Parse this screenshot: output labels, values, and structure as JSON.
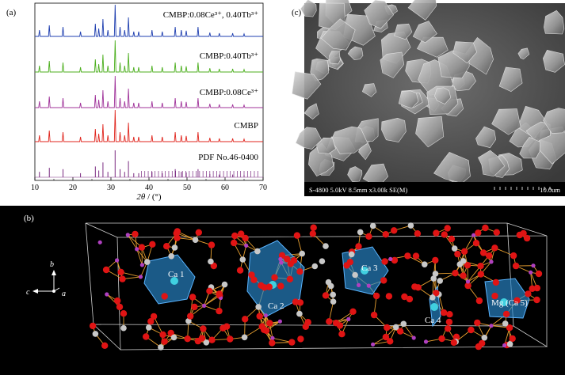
{
  "panel_a": {
    "label": "(a)",
    "xlabel_italic": "2θ",
    "xlabel_unit": " / (°)",
    "chart_data": {
      "type": "line",
      "xlim": [
        10,
        70
      ],
      "x_ticks": [
        10,
        20,
        30,
        40,
        50,
        60,
        70
      ],
      "series": [
        {
          "name": "CMBP:0.08Ce³⁺, 0.40Tb³⁺",
          "color": "#1f3fb0"
        },
        {
          "name": "CMBP:0.40Tb³⁺",
          "color": "#4caf1e"
        },
        {
          "name": "CMBP:0.08Ce³⁺",
          "color": "#a0339a"
        },
        {
          "name": "CMBP",
          "color": "#e0261e"
        },
        {
          "name": "PDF No.46-0400",
          "color": "#7a2a80"
        }
      ],
      "peaks": [
        {
          "x": 11.2,
          "h": 0.2
        },
        {
          "x": 13.8,
          "h": 0.35
        },
        {
          "x": 17.4,
          "h": 0.3
        },
        {
          "x": 22.0,
          "h": 0.15
        },
        {
          "x": 25.9,
          "h": 0.4
        },
        {
          "x": 26.8,
          "h": 0.25
        },
        {
          "x": 27.9,
          "h": 0.55
        },
        {
          "x": 29.2,
          "h": 0.2
        },
        {
          "x": 31.1,
          "h": 1.0
        },
        {
          "x": 32.4,
          "h": 0.3
        },
        {
          "x": 33.6,
          "h": 0.2
        },
        {
          "x": 34.6,
          "h": 0.6
        },
        {
          "x": 36.0,
          "h": 0.15
        },
        {
          "x": 37.3,
          "h": 0.15
        },
        {
          "x": 40.8,
          "h": 0.2
        },
        {
          "x": 43.5,
          "h": 0.15
        },
        {
          "x": 46.9,
          "h": 0.3
        },
        {
          "x": 48.5,
          "h": 0.2
        },
        {
          "x": 49.8,
          "h": 0.18
        },
        {
          "x": 52.9,
          "h": 0.3
        },
        {
          "x": 56.0,
          "h": 0.12
        },
        {
          "x": 58.5,
          "h": 0.1
        },
        {
          "x": 62.0,
          "h": 0.1
        },
        {
          "x": 65.0,
          "h": 0.08
        }
      ]
    }
  },
  "panel_b": {
    "label": "(b)",
    "sites": [
      "Ca 1",
      "Ca 2",
      "Ca 3",
      "Ca 4",
      "Mg (Ca 5)"
    ],
    "axes": {
      "b": "b",
      "c": "c",
      "a": "a"
    }
  },
  "panel_c": {
    "label": "(c)",
    "footer_left": "S-4800 5.0kV 8.5mm x3.00k SE(M)",
    "footer_right": "10.0um"
  },
  "colors": {
    "oxygen": "#e01414",
    "phosphorus": "#c8c8c8",
    "boron": "#b040c0",
    "bond": "#e8a030",
    "polyhedron": "#2a8ad0"
  }
}
